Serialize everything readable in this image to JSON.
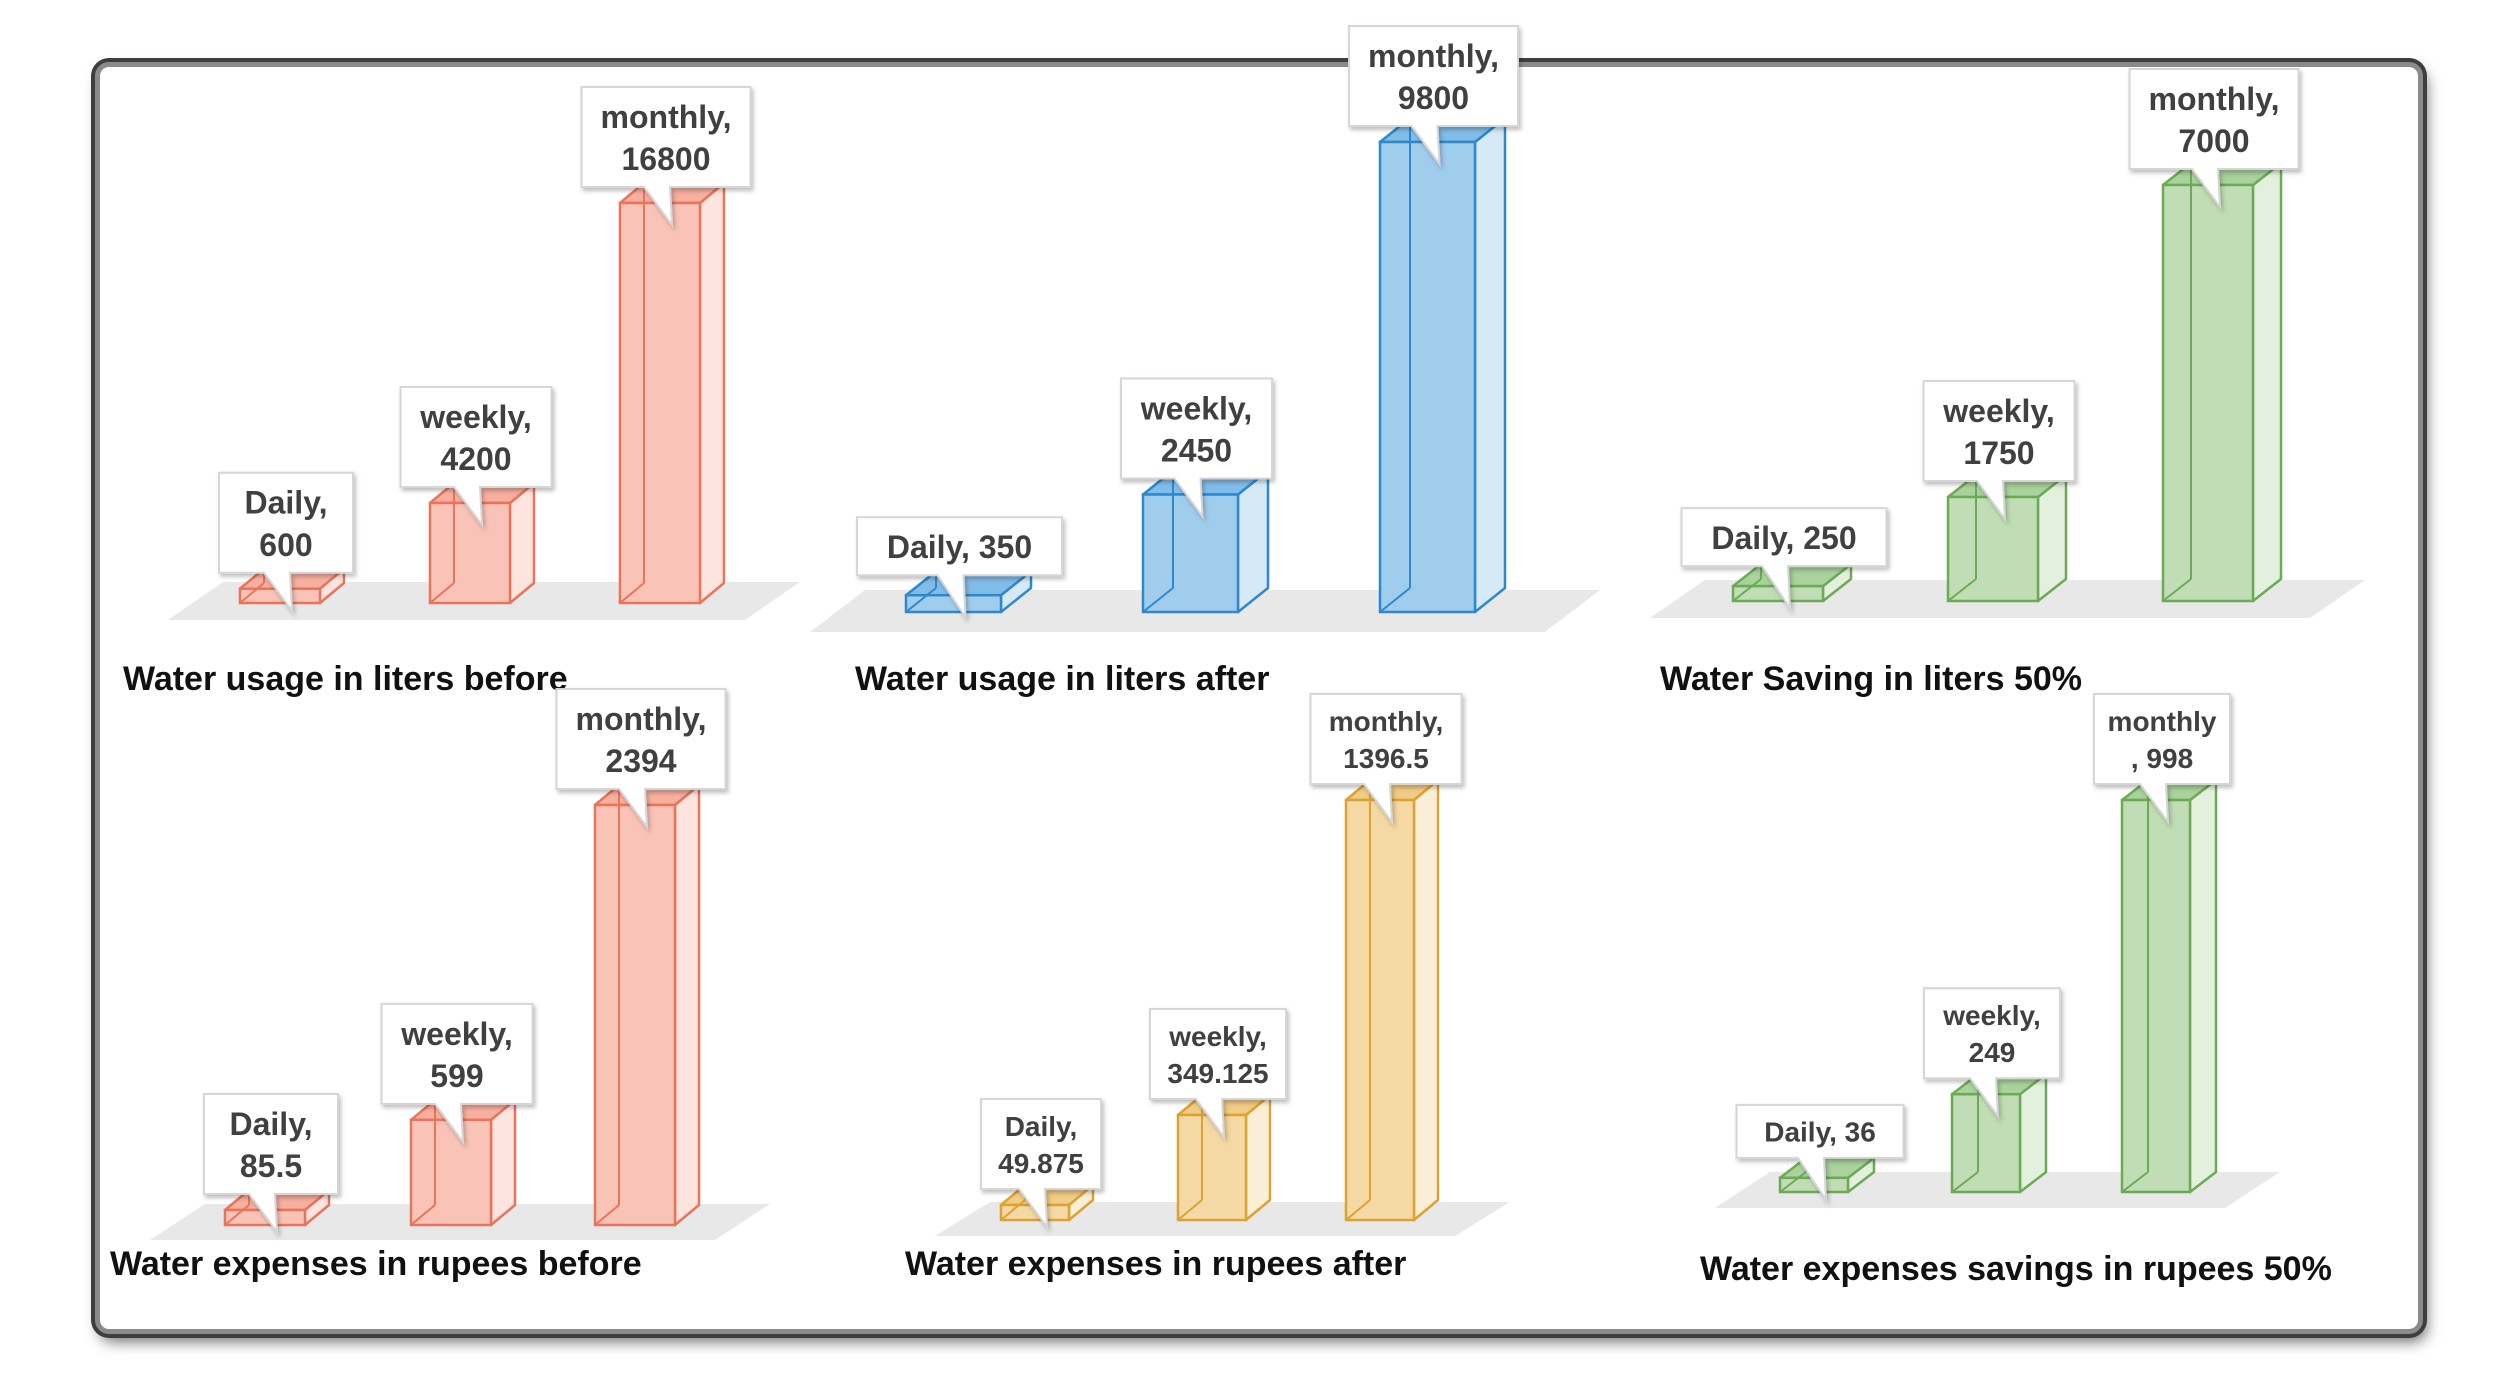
{
  "chart_data": [
    {
      "type": "bar",
      "title": "Water usage  in liters before",
      "categories": [
        "Daily",
        "weekly",
        "monthly"
      ],
      "values": [
        600,
        4200,
        16800
      ],
      "labels": [
        [
          "Daily,",
          "600"
        ],
        [
          "weekly,",
          "4200"
        ],
        [
          "monthly,",
          "16800"
        ]
      ],
      "color": "#f47a60"
    },
    {
      "type": "bar",
      "title": "Water usage in liters after",
      "categories": [
        "Daily",
        "weekly",
        "monthly"
      ],
      "values": [
        350,
        2450,
        9800
      ],
      "labels": [
        [
          "Daily, 350"
        ],
        [
          "weekly,",
          "2450"
        ],
        [
          "monthly,",
          "9800"
        ]
      ],
      "color": "#2f8fd8"
    },
    {
      "type": "bar",
      "title": "Water Saving in liters 50%",
      "categories": [
        "Daily",
        "weekly",
        "monthly"
      ],
      "values": [
        250,
        1750,
        7000
      ],
      "labels": [
        [
          "Daily, 250"
        ],
        [
          "weekly,",
          "1750"
        ],
        [
          "monthly,",
          "7000"
        ]
      ],
      "color": "#72b45a"
    },
    {
      "type": "bar",
      "title": "Water expenses  in rupees before",
      "categories": [
        "Daily",
        "weekly",
        "monthly"
      ],
      "values": [
        85.5,
        599,
        2394
      ],
      "labels": [
        [
          "Daily,",
          "85.5"
        ],
        [
          "weekly,",
          "599"
        ],
        [
          "monthly,",
          "2394"
        ]
      ],
      "color": "#f47a60"
    },
    {
      "type": "bar",
      "title": "Water expenses in rupees after",
      "categories": [
        "Daily",
        "weekly",
        "monthly"
      ],
      "values": [
        49.875,
        349.125,
        1396.5
      ],
      "labels": [
        [
          "Daily,",
          "49.875"
        ],
        [
          "weekly,",
          "349.125"
        ],
        [
          "monthly,",
          "1396.5"
        ]
      ],
      "color": "#e8aa35"
    },
    {
      "type": "bar",
      "title": "Water expenses savings in rupees 50%",
      "categories": [
        "Daily",
        "weekly",
        "monthly"
      ],
      "values": [
        36,
        249,
        998
      ],
      "labels": [
        [
          "Daily, 36"
        ],
        [
          "weekly,",
          "249"
        ],
        [
          "monthly",
          ", 998"
        ]
      ],
      "color": "#72b45a"
    }
  ]
}
